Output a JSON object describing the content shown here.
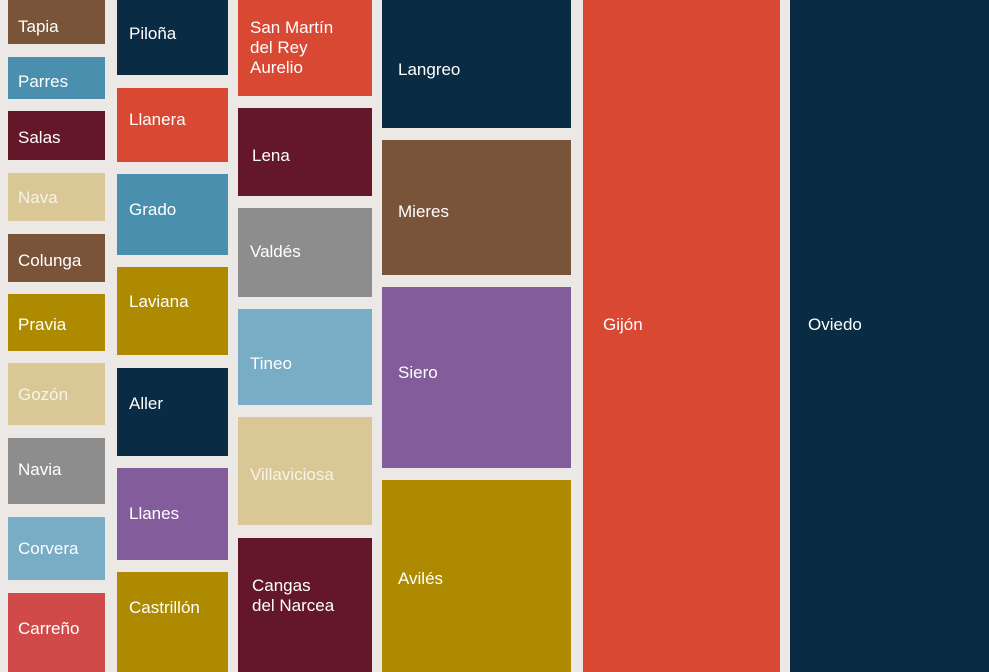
{
  "chart_data": {
    "type": "treemap",
    "title": "",
    "colors": {
      "navy": "#0a2b44",
      "red": "#d84832",
      "maroon": "#631728",
      "brown": "#7a5438",
      "teal": "#4a90ae",
      "sky": "#79adc6",
      "gray": "#8d8d8d",
      "gold": "#ad8a00",
      "sand": "#d9c796",
      "purple": "#835c9b",
      "coral": "#d04a4a"
    },
    "items": [
      {
        "name": "Tapia",
        "color": "brown",
        "text_color": "#ffffff"
      },
      {
        "name": "Parres",
        "color": "teal",
        "text_color": "#ffffff"
      },
      {
        "name": "Salas",
        "color": "maroon",
        "text_color": "#ffffff"
      },
      {
        "name": "Nava",
        "color": "sand",
        "text_color": "#f7f3e6"
      },
      {
        "name": "Colunga",
        "color": "brown",
        "text_color": "#ffffff"
      },
      {
        "name": "Pravia",
        "color": "gold",
        "text_color": "#ffffff"
      },
      {
        "name": "Gozón",
        "color": "sand",
        "text_color": "#f7f3e6"
      },
      {
        "name": "Navia",
        "color": "gray",
        "text_color": "#ffffff"
      },
      {
        "name": "Corvera",
        "color": "sky",
        "text_color": "#ffffff"
      },
      {
        "name": "Carreño",
        "color": "coral",
        "text_color": "#ffffff"
      },
      {
        "name": "Piloña",
        "color": "navy",
        "text_color": "#ffffff"
      },
      {
        "name": "Llanera",
        "color": "red",
        "text_color": "#ffffff"
      },
      {
        "name": "Grado",
        "color": "teal",
        "text_color": "#ffffff"
      },
      {
        "name": "Laviana",
        "color": "gold",
        "text_color": "#ffffff"
      },
      {
        "name": "Aller",
        "color": "navy",
        "text_color": "#ffffff"
      },
      {
        "name": "Llanes",
        "color": "purple",
        "text_color": "#ffffff"
      },
      {
        "name": "Castrillón",
        "color": "gold",
        "text_color": "#ffffff"
      },
      {
        "name": "San Martín\ndel Rey\nAurelio",
        "color": "red",
        "text_color": "#ffffff"
      },
      {
        "name": "Lena",
        "color": "maroon",
        "text_color": "#ffffff"
      },
      {
        "name": "Valdés",
        "color": "gray",
        "text_color": "#ffffff"
      },
      {
        "name": "Tineo",
        "color": "sky",
        "text_color": "#ffffff"
      },
      {
        "name": "Villaviciosa",
        "color": "sand",
        "text_color": "#f7f3e6"
      },
      {
        "name": "Cangas\ndel Narcea",
        "color": "maroon",
        "text_color": "#ffffff"
      },
      {
        "name": "Langreo",
        "color": "navy",
        "text_color": "#ffffff"
      },
      {
        "name": "Mieres",
        "color": "brown",
        "text_color": "#ffffff"
      },
      {
        "name": "Siero",
        "color": "purple",
        "text_color": "#ffffff"
      },
      {
        "name": "Avilés",
        "color": "gold",
        "text_color": "#ffffff"
      },
      {
        "name": "Gijón",
        "color": "red",
        "text_color": "#ffffff"
      },
      {
        "name": "Oviedo",
        "color": "navy",
        "text_color": "#ffffff"
      }
    ]
  }
}
